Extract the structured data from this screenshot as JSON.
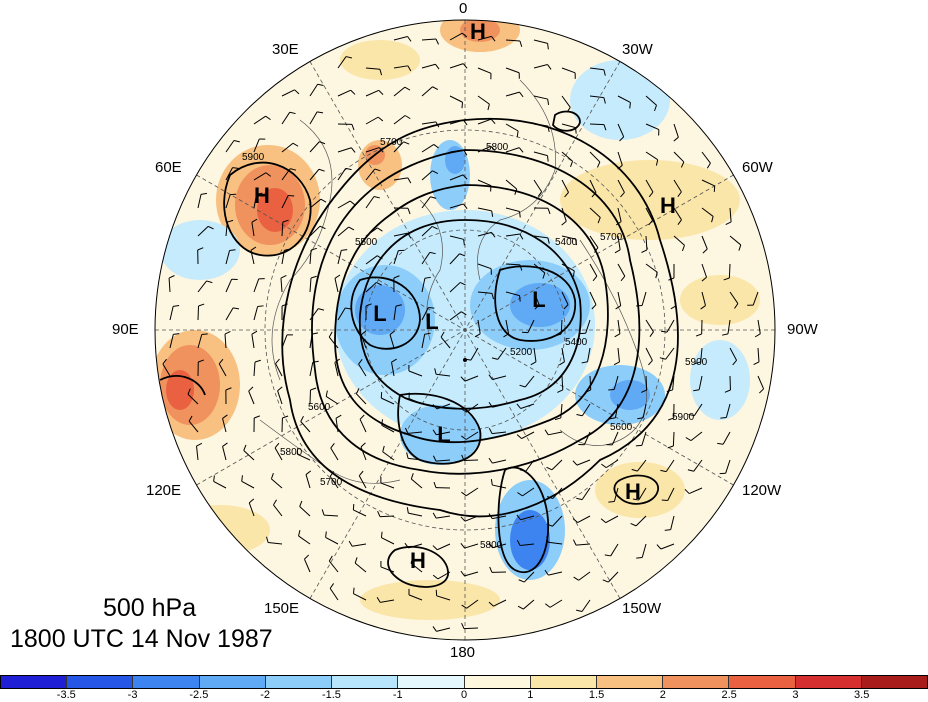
{
  "title": {
    "level": "500 hPa",
    "time": "1800 UTC 14 Nov 1987"
  },
  "longitude_labels": [
    "0",
    "30W",
    "60W",
    "90W",
    "120W",
    "150W",
    "180",
    "150E",
    "120E",
    "90E",
    "60E",
    "30E"
  ],
  "pressure_centers": [
    "H",
    "H",
    "H",
    "H",
    "H",
    "L",
    "L",
    "L",
    "L"
  ],
  "contour_labels": [
    "5900",
    "5700",
    "5800",
    "5700",
    "5400",
    "5500",
    "5600",
    "5700",
    "5800",
    "5900",
    "5400",
    "5200",
    "5600",
    "5900",
    "5800"
  ],
  "colorbar": {
    "colors": [
      "#1f1fd6",
      "#2656e6",
      "#3d84f0",
      "#5fa9f5",
      "#8ccdfa",
      "#b7e6fc",
      "#e3f7fd",
      "#fdf8dd",
      "#fbe6a9",
      "#f8c181",
      "#f0925e",
      "#ea6142",
      "#d52f2f",
      "#a81c1c"
    ],
    "ticks": [
      "-3.5",
      "-3",
      "-2.5",
      "-2",
      "-1.5",
      "-1",
      "0",
      "1",
      "1.5",
      "2",
      "2.5",
      "3",
      "3.5"
    ]
  },
  "anomaly_colors": {
    "neg_strong": "#3d84f0",
    "neg_mid": "#8ccdfa",
    "neg_weak": "#c5ebfc",
    "pos_weak": "#fbeec4",
    "pos_mid": "#f8c181",
    "pos_strong": "#ea6142"
  }
}
